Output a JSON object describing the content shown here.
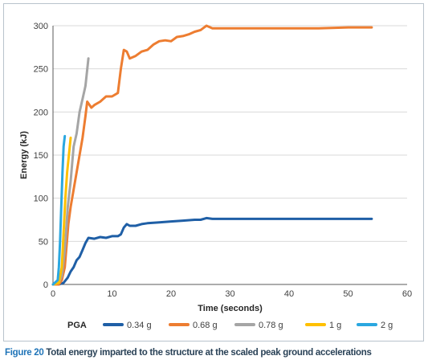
{
  "caption": {
    "number": "Figure 20",
    "text": "Total energy imparted to the structure at the scaled peak ground accelerations"
  },
  "chart_data": {
    "type": "line",
    "title": "",
    "xlabel": "Time (seconds)",
    "ylabel": "Energy (kJ)",
    "xlim": [
      0,
      60
    ],
    "ylim": [
      0,
      300
    ],
    "xticks": [
      0,
      10,
      20,
      30,
      40,
      50,
      60
    ],
    "yticks": [
      0,
      50,
      100,
      150,
      200,
      250,
      300
    ],
    "grid": "horizontal",
    "legend": {
      "title": "PGA",
      "placement": "bottom"
    },
    "series": [
      {
        "name": "0.34 g",
        "color": "#1f5fa6",
        "x": [
          0,
          1,
          1.8,
          2.5,
          3,
          3.5,
          4,
          4.5,
          5,
          5.5,
          6,
          7,
          8,
          9,
          10,
          11,
          11.5,
          12,
          12.5,
          13,
          14,
          15,
          16,
          18,
          20,
          22,
          24,
          25,
          26,
          27,
          30,
          35,
          40,
          45,
          50,
          54
        ],
        "y": [
          0,
          0,
          2,
          8,
          15,
          20,
          28,
          32,
          40,
          48,
          54,
          53,
          55,
          54,
          56,
          56,
          58,
          66,
          70,
          68,
          68,
          70,
          71,
          72,
          73,
          74,
          75,
          75,
          77,
          76,
          76,
          76,
          76,
          76,
          76,
          76
        ]
      },
      {
        "name": "0.68 g",
        "color": "#ed7d31",
        "x": [
          0,
          1,
          1.5,
          2,
          2.3,
          2.6,
          3,
          3.5,
          4,
          4.5,
          5,
          5.5,
          5.8,
          6,
          6.5,
          7,
          8,
          9,
          10,
          11,
          11.5,
          12,
          12.5,
          13,
          14,
          15,
          16,
          17,
          18,
          19,
          20,
          21,
          22,
          23,
          24,
          25,
          26,
          27,
          30,
          35,
          40,
          45,
          50,
          54
        ],
        "y": [
          0,
          0,
          5,
          20,
          45,
          70,
          90,
          110,
          130,
          150,
          170,
          195,
          212,
          210,
          205,
          208,
          212,
          218,
          218,
          222,
          250,
          272,
          270,
          262,
          265,
          270,
          272,
          278,
          282,
          283,
          282,
          287,
          288,
          290,
          293,
          295,
          300,
          297,
          297,
          297,
          297,
          297,
          298,
          298
        ]
      },
      {
        "name": "0.78 g",
        "color": "#a5a5a5",
        "x": [
          0,
          1,
          1.5,
          2,
          2.5,
          3,
          3.5,
          4,
          4.5,
          5,
          5.5,
          6
        ],
        "y": [
          0,
          2,
          10,
          40,
          90,
          120,
          160,
          175,
          200,
          215,
          230,
          262
        ]
      },
      {
        "name": "1 g",
        "color": "#ffc000",
        "x": [
          0,
          1,
          1.5,
          1.8,
          2.1,
          2.4,
          2.7,
          3
        ],
        "y": [
          0,
          2,
          20,
          60,
          100,
          130,
          150,
          170
        ]
      },
      {
        "name": "2 g",
        "color": "#2aa7e0",
        "x": [
          0,
          0.8,
          1,
          1.2,
          1.4,
          1.6,
          1.8,
          2
        ],
        "y": [
          0,
          5,
          20,
          50,
          90,
          130,
          160,
          172
        ]
      }
    ]
  }
}
